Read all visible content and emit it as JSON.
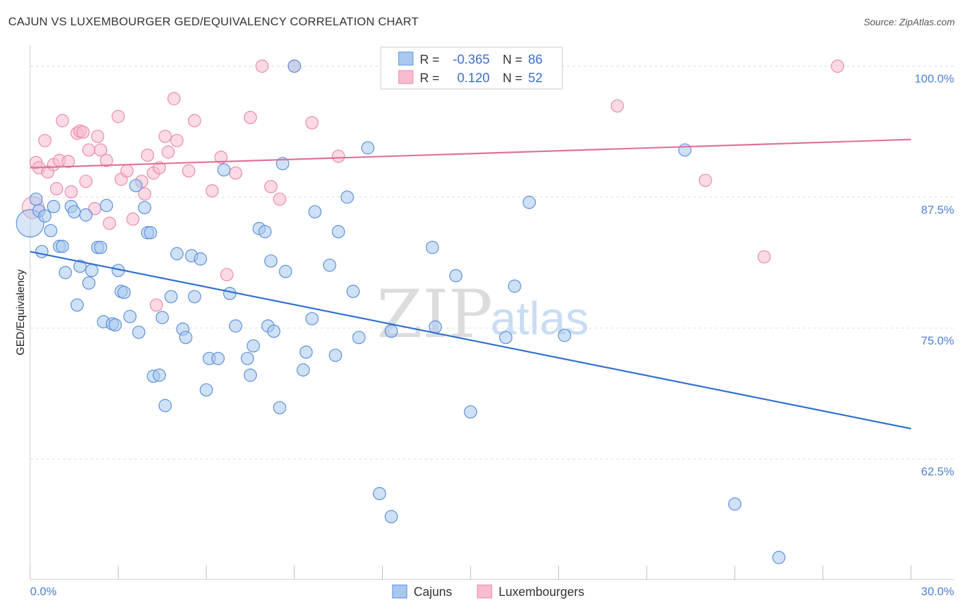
{
  "title": "CAJUN VS LUXEMBOURGER GED/EQUIVALENCY CORRELATION CHART",
  "source": "Source: ZipAtlas.com",
  "watermark": {
    "zip": "ZIP",
    "atlas": "atlas"
  },
  "colors": {
    "cajun_fill": "#a8c8f0",
    "cajun_stroke": "#5b8fd6",
    "cajun_line": "#2f6fd0",
    "lux_fill": "#f7bcd0",
    "lux_stroke": "#e88aab",
    "lux_line": "#e0709a",
    "grid": "#dddddd",
    "axis_text": "#4a7fd4"
  },
  "stats": [
    {
      "r_label": "R =",
      "r_value": "-0.365",
      "n_label": "N =",
      "n_value": "86"
    },
    {
      "r_label": "R =",
      "r_value": "0.120",
      "n_label": "N =",
      "n_value": "52"
    }
  ],
  "legend": [
    "Cajuns",
    "Luxembourgers"
  ],
  "chart_data": {
    "type": "scatter",
    "title": "CAJUN VS LUXEMBOURGER GED/EQUIVALENCY CORRELATION CHART",
    "xlabel": "",
    "ylabel": "GED/Equivalency",
    "xlim": [
      0,
      30
    ],
    "ylim": [
      51,
      102
    ],
    "x_tick_labels": [
      "0.0%",
      "30.0%"
    ],
    "y_ticks": [
      62.5,
      75.0,
      87.5,
      100.0
    ],
    "y_tick_labels": [
      "62.5%",
      "75.0%",
      "87.5%",
      "100.0%"
    ],
    "grid": "horizontal dashed",
    "legend_position": "bottom-center",
    "series": [
      {
        "name": "Cajuns",
        "trend": {
          "x": [
            0,
            30
          ],
          "y": [
            82.3,
            65.4
          ]
        },
        "points": [
          [
            0.0,
            85.0
          ],
          [
            0.2,
            87.3
          ],
          [
            0.3,
            86.2
          ],
          [
            0.5,
            85.7
          ],
          [
            0.4,
            82.3
          ],
          [
            0.7,
            84.3
          ],
          [
            0.8,
            86.6
          ],
          [
            1.0,
            82.8
          ],
          [
            1.1,
            82.8
          ],
          [
            1.2,
            80.3
          ],
          [
            1.4,
            86.6
          ],
          [
            1.5,
            86.1
          ],
          [
            1.6,
            77.2
          ],
          [
            1.7,
            80.9
          ],
          [
            1.9,
            85.8
          ],
          [
            2.0,
            79.3
          ],
          [
            2.1,
            80.5
          ],
          [
            2.3,
            82.7
          ],
          [
            2.4,
            82.7
          ],
          [
            2.5,
            75.6
          ],
          [
            2.6,
            86.7
          ],
          [
            2.8,
            75.4
          ],
          [
            2.9,
            75.3
          ],
          [
            3.0,
            80.5
          ],
          [
            3.1,
            78.5
          ],
          [
            3.2,
            78.4
          ],
          [
            3.4,
            76.1
          ],
          [
            3.6,
            88.6
          ],
          [
            3.7,
            74.6
          ],
          [
            3.9,
            86.5
          ],
          [
            4.0,
            84.1
          ],
          [
            4.1,
            84.1
          ],
          [
            4.2,
            70.4
          ],
          [
            4.4,
            70.5
          ],
          [
            4.5,
            76.0
          ],
          [
            4.6,
            67.6
          ],
          [
            4.8,
            78.0
          ],
          [
            5.0,
            82.1
          ],
          [
            5.2,
            74.9
          ],
          [
            5.3,
            74.1
          ],
          [
            5.5,
            81.9
          ],
          [
            5.6,
            78.0
          ],
          [
            5.8,
            81.6
          ],
          [
            6.0,
            69.1
          ],
          [
            6.1,
            72.1
          ],
          [
            6.4,
            72.1
          ],
          [
            6.6,
            90.1
          ],
          [
            6.8,
            78.3
          ],
          [
            7.0,
            75.2
          ],
          [
            7.4,
            72.1
          ],
          [
            7.5,
            70.5
          ],
          [
            7.6,
            73.3
          ],
          [
            7.8,
            84.5
          ],
          [
            8.0,
            84.2
          ],
          [
            8.1,
            75.2
          ],
          [
            8.2,
            81.4
          ],
          [
            8.3,
            74.7
          ],
          [
            8.5,
            67.4
          ],
          [
            8.6,
            90.7
          ],
          [
            8.7,
            80.4
          ],
          [
            9.0,
            100.0
          ],
          [
            9.3,
            71.0
          ],
          [
            9.4,
            72.7
          ],
          [
            9.6,
            75.9
          ],
          [
            9.7,
            86.1
          ],
          [
            10.2,
            81.0
          ],
          [
            10.4,
            72.4
          ],
          [
            10.5,
            84.2
          ],
          [
            10.8,
            87.5
          ],
          [
            11.0,
            78.5
          ],
          [
            11.2,
            74.1
          ],
          [
            11.5,
            92.2
          ],
          [
            11.9,
            59.2
          ],
          [
            12.3,
            57.0
          ],
          [
            12.3,
            74.7
          ],
          [
            13.7,
            82.7
          ],
          [
            13.8,
            75.1
          ],
          [
            14.5,
            80.0
          ],
          [
            15.0,
            67.0
          ],
          [
            16.2,
            74.1
          ],
          [
            16.5,
            79.0
          ],
          [
            17.0,
            87.0
          ],
          [
            18.2,
            74.3
          ],
          [
            22.3,
            92.0
          ],
          [
            24.0,
            58.2
          ],
          [
            25.5,
            53.1
          ]
        ]
      },
      {
        "name": "Luxembourgers",
        "trend": {
          "x": [
            0,
            30
          ],
          "y": [
            90.3,
            93.0
          ]
        },
        "points": [
          [
            0.1,
            86.5
          ],
          [
            0.2,
            90.8
          ],
          [
            0.3,
            90.3
          ],
          [
            0.5,
            92.9
          ],
          [
            0.6,
            89.9
          ],
          [
            0.8,
            90.6
          ],
          [
            0.9,
            88.3
          ],
          [
            1.0,
            91.0
          ],
          [
            1.1,
            94.8
          ],
          [
            1.3,
            90.9
          ],
          [
            1.4,
            88.0
          ],
          [
            1.6,
            93.6
          ],
          [
            1.7,
            93.8
          ],
          [
            1.8,
            93.7
          ],
          [
            1.9,
            89.0
          ],
          [
            2.0,
            92.0
          ],
          [
            2.2,
            86.4
          ],
          [
            2.3,
            93.3
          ],
          [
            2.4,
            92.0
          ],
          [
            2.6,
            91.0
          ],
          [
            2.7,
            85.0
          ],
          [
            3.0,
            95.2
          ],
          [
            3.1,
            89.2
          ],
          [
            3.3,
            90.0
          ],
          [
            3.5,
            85.4
          ],
          [
            3.8,
            89.0
          ],
          [
            3.9,
            87.8
          ],
          [
            4.0,
            91.5
          ],
          [
            4.2,
            89.8
          ],
          [
            4.3,
            77.2
          ],
          [
            4.4,
            90.3
          ],
          [
            4.6,
            93.3
          ],
          [
            4.7,
            91.8
          ],
          [
            4.9,
            96.9
          ],
          [
            5.0,
            92.9
          ],
          [
            5.4,
            90.0
          ],
          [
            5.6,
            94.8
          ],
          [
            6.2,
            88.1
          ],
          [
            6.5,
            91.3
          ],
          [
            6.7,
            80.1
          ],
          [
            7.0,
            89.8
          ],
          [
            7.5,
            95.1
          ],
          [
            7.9,
            100.0
          ],
          [
            8.2,
            88.5
          ],
          [
            8.5,
            87.3
          ],
          [
            9.0,
            100.0
          ],
          [
            9.6,
            94.6
          ],
          [
            10.5,
            91.4
          ],
          [
            20.0,
            96.2
          ],
          [
            23.0,
            89.1
          ],
          [
            25.0,
            81.8
          ],
          [
            27.5,
            100.0
          ]
        ]
      }
    ]
  }
}
